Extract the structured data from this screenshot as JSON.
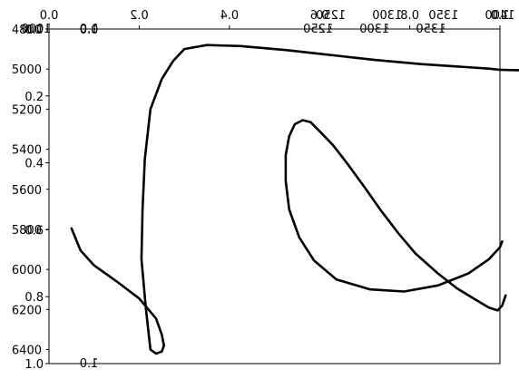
{
  "chart_data": {
    "type": "line",
    "title": "",
    "xlabel": "",
    "ylabel": "",
    "grid": false,
    "axes": {
      "outer_x_ticks": {
        "labels": [
          "0.0",
          "0.2",
          "0.4",
          "0.6",
          "0.8",
          "1.0"
        ],
        "values": [
          0.0,
          0.2,
          0.4,
          0.6,
          0.8,
          1.0
        ],
        "flipped": true
      },
      "outer_y_ticks": {
        "labels": [
          "0.0",
          "0.2",
          "0.4",
          "0.6",
          "0.8",
          "1.0"
        ],
        "values": [
          0.0,
          0.2,
          0.4,
          0.6,
          0.8,
          1.0
        ]
      },
      "inner_x_ticks": {
        "labels": [
          "1.0",
          "1250",
          "1300",
          "1350",
          "1400"
        ],
        "values": [
          1.0,
          1250,
          1300,
          1350,
          1400
        ],
        "flipped": true
      },
      "inner_x_mirrored_labels": {
        "labels": [
          "1.0",
          "1000",
          "1250",
          "1300",
          "1350"
        ],
        "values": [
          1.0,
          1000,
          1250,
          1300,
          1350
        ]
      },
      "inner_x_range": [
        1000,
        1400
      ],
      "inner_y_ticks": {
        "labels": [
          "4800",
          "5000",
          "5200",
          "5400",
          "5600",
          "5800",
          "6000",
          "6200",
          "6400"
        ],
        "values": [
          4800,
          5000,
          5200,
          5400,
          5600,
          5800,
          6000,
          6200,
          6400
        ]
      },
      "inner_y_range": [
        4800,
        6470
      ],
      "inner_y_mirrored_labels": {
        "labels": [
          "1.0",
          "0.0"
        ],
        "values": [
          1.0,
          0.0
        ]
      }
    },
    "series": [
      {
        "x": [
          1020,
          1028,
          1040,
          1060,
          1080,
          1095,
          1100,
          1102,
          1100,
          1095,
          1090,
          1086,
          1082,
          1083,
          1085,
          1090,
          1100,
          1110,
          1120,
          1140,
          1170,
          1210,
          1250,
          1290,
          1330,
          1370,
          1390,
          1400,
          1410,
          1420
        ],
        "y": [
          5795,
          5905,
          5980,
          6060,
          6145,
          6245,
          6325,
          6380,
          6410,
          6420,
          6400,
          6200,
          5950,
          5700,
          5450,
          5200,
          5050,
          4960,
          4900,
          4880,
          4885,
          4905,
          4930,
          4955,
          4975,
          4990,
          4998,
          5003,
          5005,
          5006
        ]
      },
      {
        "x": [
          1405,
          1402,
          1398,
          1390,
          1378,
          1362,
          1345,
          1325,
          1310,
          1295,
          1280,
          1265,
          1252,
          1240,
          1232,
          1225,
          1218,
          1213,
          1210,
          1210,
          1213,
          1222,
          1235,
          1255,
          1285,
          1315,
          1345,
          1372,
          1390,
          1400,
          1402
        ],
        "y": [
          6130,
          6180,
          6205,
          6190,
          6150,
          6095,
          6020,
          5920,
          5820,
          5710,
          5590,
          5475,
          5380,
          5310,
          5265,
          5255,
          5275,
          5335,
          5430,
          5560,
          5700,
          5840,
          5955,
          6050,
          6100,
          6110,
          6080,
          6020,
          5950,
          5890,
          5860
        ]
      }
    ]
  }
}
